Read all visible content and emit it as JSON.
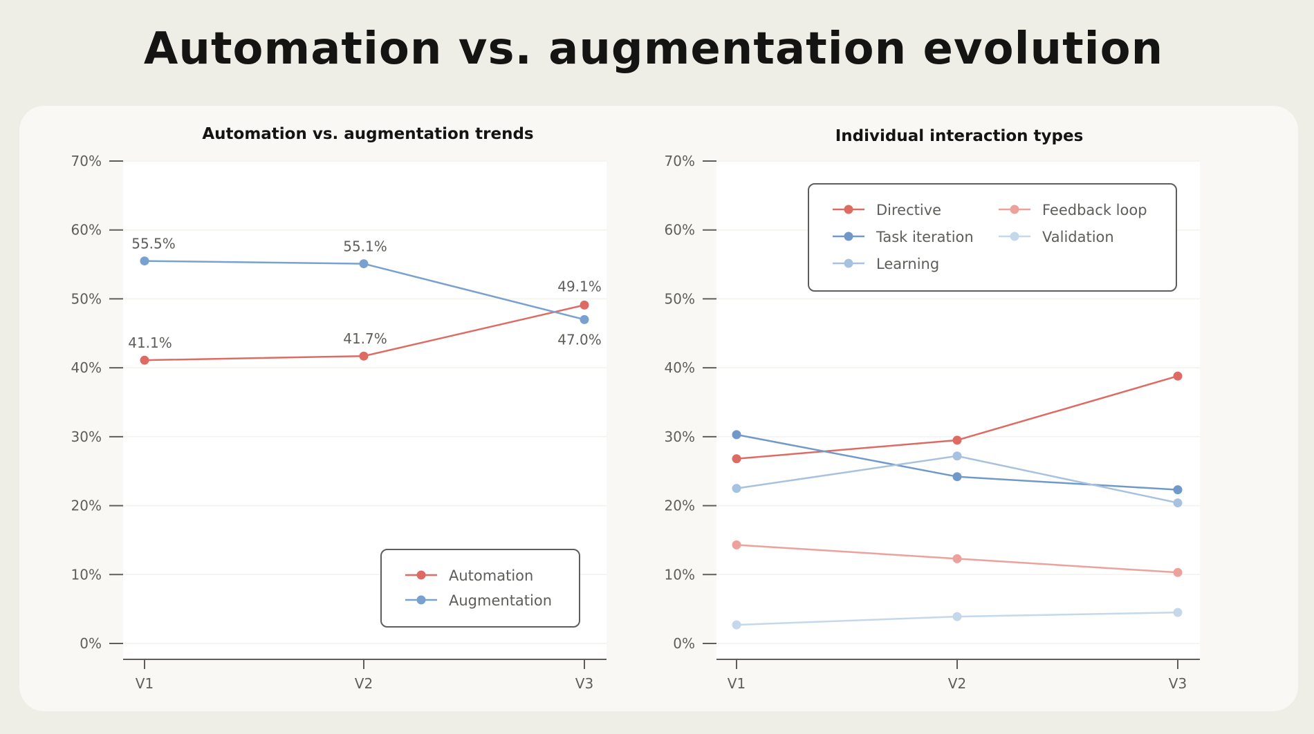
{
  "page": {
    "title": "Automation vs. augmentation evolution"
  },
  "chart_data": [
    {
      "type": "line",
      "title": "Automation vs. augmentation trends",
      "xlabel": "",
      "ylabel": "",
      "categories": [
        "V1",
        "V2",
        "V3"
      ],
      "ylim": [
        0,
        70
      ],
      "yticks": [
        "0%",
        "10%",
        "20%",
        "30%",
        "40%",
        "50%",
        "60%",
        "70%"
      ],
      "legend_position": "lower-right",
      "series": [
        {
          "name": "Automation",
          "color": "#dd6b64",
          "values": [
            41.1,
            41.7,
            49.1
          ],
          "labels": [
            "41.1%",
            "41.7%",
            "49.1%"
          ]
        },
        {
          "name": "Augmentation",
          "color": "#79a1d0",
          "values": [
            55.5,
            55.1,
            47.0
          ],
          "labels": [
            "55.5%",
            "55.1%",
            "47.0%"
          ]
        }
      ]
    },
    {
      "type": "line",
      "title": "Individual interaction types",
      "xlabel": "",
      "ylabel": "",
      "categories": [
        "V1",
        "V2",
        "V3"
      ],
      "ylim": [
        0,
        70
      ],
      "yticks": [
        "0%",
        "10%",
        "20%",
        "30%",
        "40%",
        "50%",
        "60%",
        "70%"
      ],
      "legend_position": "upper-center",
      "series": [
        {
          "name": "Directive",
          "color": "#dd6b64",
          "values": [
            26.8,
            29.5,
            38.8
          ]
        },
        {
          "name": "Feedback loop",
          "color": "#eda19c",
          "values": [
            14.3,
            12.3,
            10.3
          ]
        },
        {
          "name": "Task iteration",
          "color": "#7099c9",
          "values": [
            30.3,
            24.2,
            22.3
          ]
        },
        {
          "name": "Validation",
          "color": "#c4d8ec",
          "values": [
            2.7,
            3.9,
            4.5
          ]
        },
        {
          "name": "Learning",
          "color": "#a7c2e1",
          "values": [
            22.5,
            27.2,
            20.4
          ]
        }
      ]
    }
  ]
}
